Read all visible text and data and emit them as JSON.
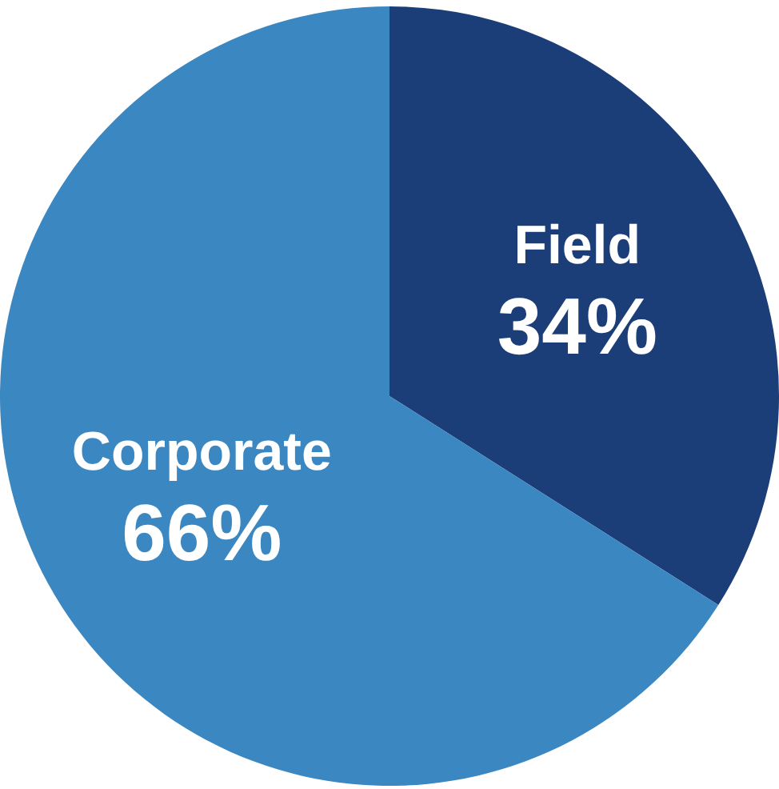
{
  "chart_data": {
    "type": "pie",
    "categories": [
      "Field",
      "Corporate"
    ],
    "values": [
      34,
      66
    ],
    "colors": [
      "#1b3d78",
      "#3b87c2"
    ],
    "value_labels": [
      "34%",
      "66%"
    ],
    "legend": false
  }
}
